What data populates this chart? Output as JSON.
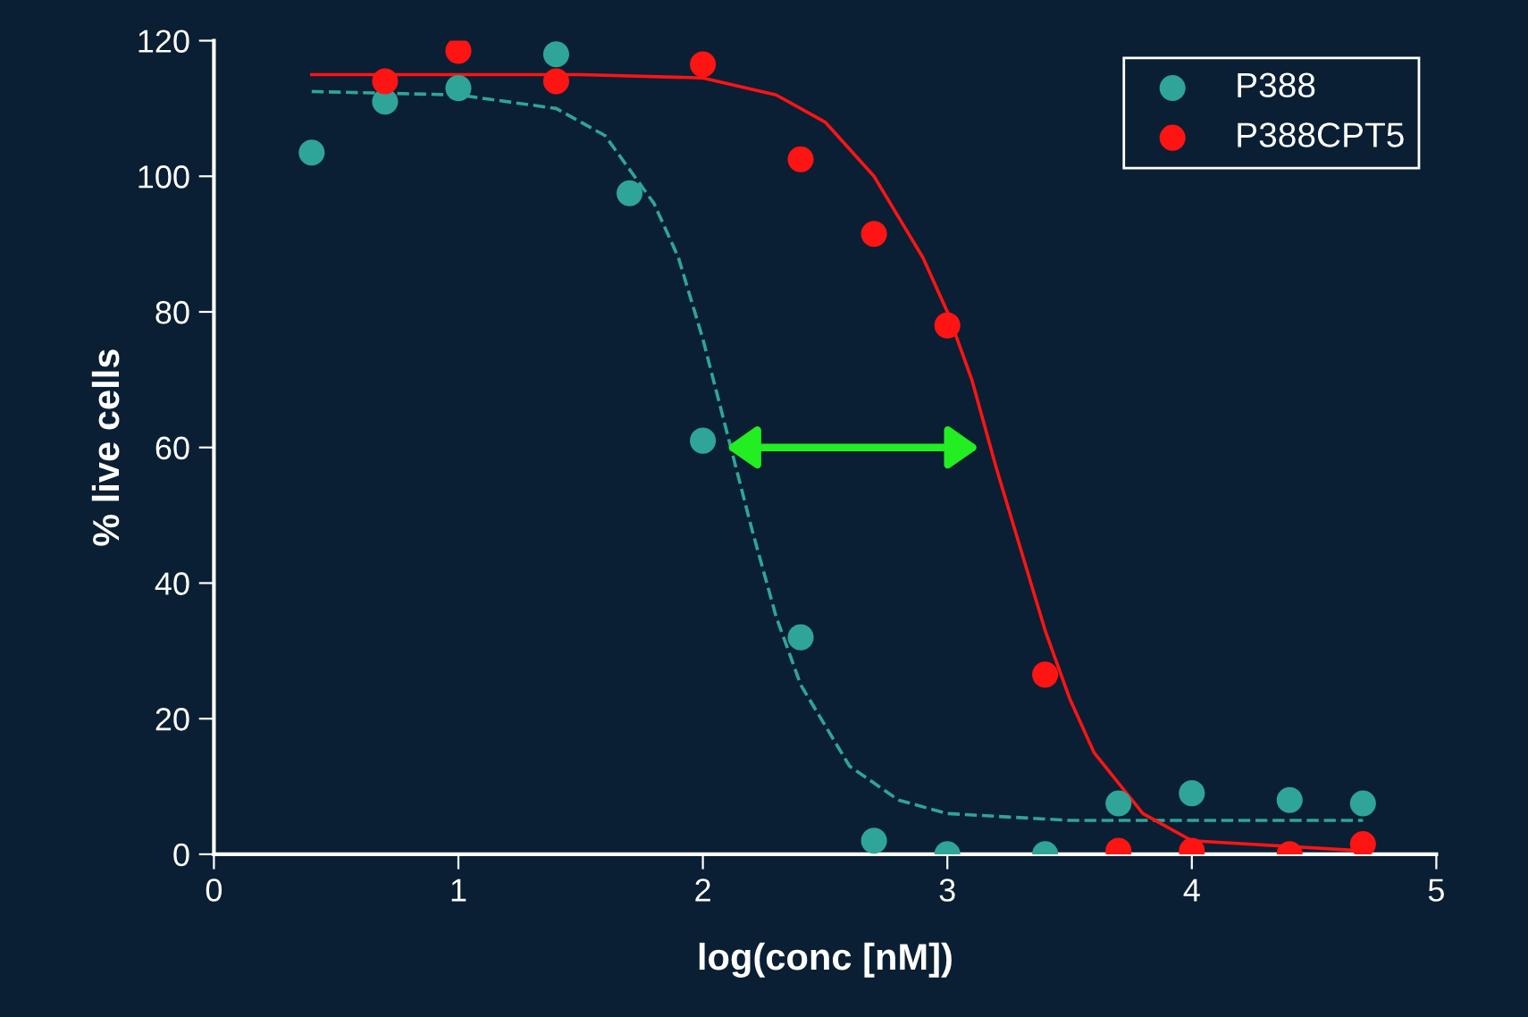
{
  "chart_data": {
    "type": "scatter",
    "xlabel": "log(conc [nM])",
    "ylabel": "% live cells",
    "xlim": [
      0,
      5
    ],
    "ylim": [
      0,
      120
    ],
    "xticks": [
      0,
      1,
      2,
      3,
      4,
      5
    ],
    "yticks": [
      0,
      20,
      40,
      60,
      80,
      100,
      120
    ],
    "grid": false,
    "legend": "top right",
    "marker": "circle",
    "series": [
      {
        "name": "P388",
        "color": "#2fa597",
        "x": [
          0.4,
          0.7,
          1.0,
          1.4,
          1.7,
          2.0,
          2.4,
          2.7,
          3.0,
          3.4,
          3.7,
          4.0,
          4.4,
          4.7
        ],
        "values": [
          103.5,
          111,
          113,
          118,
          97.5,
          61,
          32,
          2,
          0,
          0,
          7.5,
          9,
          8,
          7.5
        ]
      },
      {
        "name": "P388CPT5",
        "color": "#ff1414",
        "x": [
          0.7,
          1.0,
          1.4,
          2.0,
          2.4,
          2.7,
          3.0,
          3.4,
          3.7,
          4.0,
          4.4,
          4.7
        ],
        "values": [
          114,
          118.5,
          114,
          116.5,
          102.5,
          91.5,
          78,
          26.5,
          0.5,
          0.5,
          0,
          1.5
        ]
      },
      {
        "type": "line",
        "marker": "none",
        "color": "#2fa597",
        "line_style": "dashed",
        "x": [
          0.4,
          1.0,
          1.4,
          1.6,
          1.8,
          1.9,
          2.0,
          2.1,
          2.2,
          2.3,
          2.4,
          2.6,
          2.8,
          3.0,
          3.5,
          4.7
        ],
        "values": [
          112.5,
          112,
          110,
          106,
          96,
          88,
          76,
          62,
          48,
          35,
          25,
          13,
          8,
          6,
          5,
          5
        ]
      },
      {
        "type": "line",
        "marker": "none",
        "color": "#ff1414",
        "line_style": "solid",
        "x": [
          0.4,
          1.5,
          2.0,
          2.3,
          2.5,
          2.7,
          2.9,
          3.0,
          3.1,
          3.2,
          3.3,
          3.4,
          3.5,
          3.6,
          3.8,
          4.0,
          4.7
        ],
        "values": [
          115,
          115,
          114.5,
          112,
          108,
          100,
          88,
          80,
          70,
          57,
          45,
          33,
          23,
          15,
          6,
          2,
          0.5
        ]
      }
    ]
  }
}
